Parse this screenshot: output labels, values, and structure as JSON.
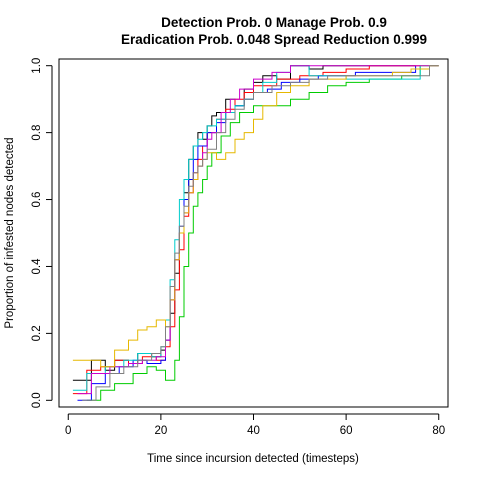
{
  "chart_data": {
    "type": "line",
    "title": "Detection Prob. 0 Manage Prob. 0.9",
    "subtitle": "Eradication Prob. 0.048 Spread Reduction 0.999",
    "xlabel": "Time since incursion detected (timesteps)",
    "ylabel": "Proportion of infested nodes detected",
    "xlim": [
      -2,
      82
    ],
    "ylim": [
      -0.02,
      1.02
    ],
    "x_ticks": [
      "0",
      "20",
      "40",
      "60",
      "80"
    ],
    "y_ticks": [
      "0.0",
      "0.2",
      "0.4",
      "0.6",
      "0.8",
      "1.0"
    ],
    "grid": false,
    "legend": "none",
    "series": [
      {
        "color": "#000000",
        "x": [
          1,
          3,
          5,
          8,
          10,
          13,
          15,
          18,
          20,
          21,
          22,
          23,
          24,
          25,
          26,
          27,
          28,
          29,
          30,
          31,
          32,
          34,
          36,
          38,
          40,
          42,
          45,
          48,
          52,
          55,
          60,
          65,
          70,
          75
        ],
        "y": [
          0.06,
          0.06,
          0.12,
          0.09,
          0.12,
          0.11,
          0.14,
          0.13,
          0.15,
          0.18,
          0.26,
          0.38,
          0.5,
          0.62,
          0.72,
          0.76,
          0.8,
          0.78,
          0.82,
          0.85,
          0.86,
          0.9,
          0.88,
          0.93,
          0.95,
          0.97,
          0.96,
          1.0,
          0.99,
          1.0,
          1.0,
          1.0,
          1.0,
          1.0
        ]
      },
      {
        "color": "#ff0000",
        "x": [
          1,
          4,
          7,
          10,
          13,
          16,
          19,
          21,
          22,
          23,
          24,
          25,
          26,
          27,
          28,
          29,
          30,
          32,
          34,
          36,
          38,
          40,
          45,
          50,
          55,
          60,
          65,
          70,
          76
        ],
        "y": [
          0.02,
          0.09,
          0.1,
          0.12,
          0.11,
          0.13,
          0.12,
          0.16,
          0.22,
          0.33,
          0.45,
          0.55,
          0.62,
          0.68,
          0.72,
          0.76,
          0.8,
          0.84,
          0.87,
          0.9,
          0.92,
          0.94,
          0.96,
          0.97,
          0.98,
          0.99,
          1.0,
          1.0,
          1.0
        ]
      },
      {
        "color": "#00cc00",
        "x": [
          4,
          7,
          10,
          14,
          17,
          19,
          21,
          22,
          23,
          24,
          25,
          26,
          27,
          28,
          29,
          30,
          31,
          33,
          35,
          37,
          40,
          44,
          48,
          52,
          56,
          60,
          65,
          70,
          72,
          76,
          80
        ],
        "y": [
          0.0,
          0.03,
          0.05,
          0.08,
          0.1,
          0.09,
          0.06,
          0.06,
          0.12,
          0.25,
          0.4,
          0.5,
          0.58,
          0.62,
          0.66,
          0.7,
          0.74,
          0.79,
          0.83,
          0.86,
          0.88,
          0.88,
          0.9,
          0.92,
          0.94,
          0.95,
          0.96,
          0.96,
          0.97,
          1.0,
          1.0
        ]
      },
      {
        "color": "#0000ff",
        "x": [
          2,
          5,
          8,
          11,
          14,
          17,
          20,
          21,
          22,
          23,
          24,
          25,
          26,
          27,
          28,
          30,
          32,
          34,
          36,
          38,
          40,
          43,
          46,
          50,
          54,
          58,
          62,
          66,
          70,
          75
        ],
        "y": [
          0.0,
          0.05,
          0.08,
          0.1,
          0.12,
          0.11,
          0.12,
          0.18,
          0.3,
          0.42,
          0.52,
          0.6,
          0.66,
          0.72,
          0.76,
          0.8,
          0.83,
          0.86,
          0.88,
          0.9,
          0.92,
          0.93,
          0.95,
          0.96,
          0.97,
          0.97,
          0.98,
          0.98,
          0.98,
          1.0
        ]
      },
      {
        "color": "#00cccc",
        "x": [
          1,
          4,
          8,
          12,
          15,
          18,
          20,
          21,
          22,
          23,
          24,
          25,
          26,
          27,
          28,
          29,
          30,
          32,
          34,
          36,
          38,
          40,
          42,
          45,
          48,
          52,
          56,
          60,
          66,
          70,
          76
        ],
        "y": [
          0.03,
          0.08,
          0.1,
          0.12,
          0.14,
          0.13,
          0.16,
          0.24,
          0.36,
          0.48,
          0.6,
          0.66,
          0.72,
          0.76,
          0.78,
          0.8,
          0.82,
          0.84,
          0.86,
          0.88,
          0.9,
          0.92,
          0.95,
          0.98,
          1.0,
          0.97,
          0.97,
          0.96,
          0.96,
          0.96,
          1.0
        ]
      },
      {
        "color": "#cc00cc",
        "x": [
          2,
          5,
          9,
          13,
          16,
          19,
          21,
          22,
          23,
          24,
          25,
          26,
          27,
          28,
          29,
          30,
          31,
          33,
          35,
          37,
          40,
          44,
          48,
          52,
          56,
          60,
          66,
          72,
          78,
          80
        ],
        "y": [
          0.02,
          0.08,
          0.1,
          0.11,
          0.12,
          0.13,
          0.18,
          0.3,
          0.42,
          0.5,
          0.56,
          0.62,
          0.66,
          0.7,
          0.74,
          0.78,
          0.8,
          0.86,
          0.9,
          0.93,
          0.96,
          0.98,
          1.0,
          1.0,
          1.0,
          1.0,
          1.0,
          1.0,
          1.0,
          1.0
        ]
      },
      {
        "color": "#e6b800",
        "x": [
          1,
          4,
          7,
          10,
          13,
          15,
          17,
          19,
          21,
          22,
          23,
          24,
          25,
          26,
          27,
          28,
          29,
          30,
          32,
          34,
          36,
          38,
          40,
          42,
          45,
          48,
          52,
          56,
          60,
          65,
          70,
          74,
          78,
          80
        ],
        "y": [
          0.12,
          0.12,
          0.1,
          0.15,
          0.18,
          0.21,
          0.22,
          0.24,
          0.22,
          0.3,
          0.42,
          0.5,
          0.56,
          0.62,
          0.66,
          0.7,
          0.72,
          0.74,
          0.72,
          0.74,
          0.78,
          0.8,
          0.84,
          0.88,
          0.92,
          0.94,
          0.96,
          0.96,
          0.97,
          0.97,
          0.98,
          0.99,
          1.0,
          1.0
        ]
      },
      {
        "color": "#808080",
        "x": [
          3,
          6,
          9,
          12,
          15,
          18,
          20,
          21,
          22,
          23,
          24,
          25,
          26,
          27,
          28,
          29,
          30,
          32,
          34,
          36,
          38,
          40,
          44,
          48,
          52,
          56,
          60,
          66,
          72,
          78,
          80
        ],
        "y": [
          0.0,
          0.04,
          0.08,
          0.1,
          0.12,
          0.14,
          0.16,
          0.22,
          0.34,
          0.44,
          0.52,
          0.58,
          0.64,
          0.68,
          0.7,
          0.72,
          0.75,
          0.8,
          0.84,
          0.87,
          0.9,
          0.92,
          0.94,
          0.95,
          0.96,
          0.97,
          0.97,
          0.97,
          0.97,
          1.0,
          1.0
        ]
      }
    ]
  }
}
